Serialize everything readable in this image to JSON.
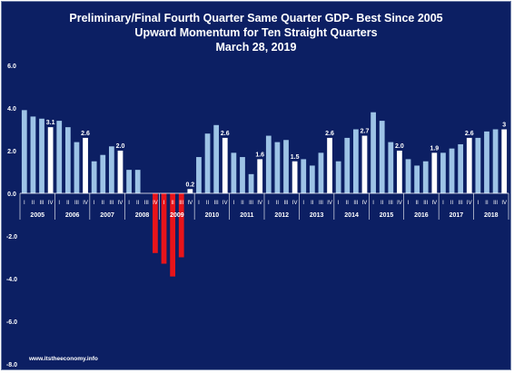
{
  "chart_data": {
    "type": "bar",
    "title": "Preliminary/Final Fourth Quarter Same Quarter GDP- Best Since 2005",
    "subtitle": "Upward Momentum for Ten Straight Quarters",
    "date": "March 28, 2019",
    "source": "www.itstheeconomy.info",
    "ylim": [
      -8,
      6
    ],
    "yticks": [
      "6.0",
      "4.0",
      "2.0",
      "0.0",
      "-2.0",
      "-4.0",
      "-6.0",
      "-8.0"
    ],
    "quarter_labels": [
      "I",
      "II",
      "III",
      "IV"
    ],
    "years": [
      "2005",
      "2006",
      "2007",
      "2008",
      "2009",
      "2010",
      "2011",
      "2012",
      "2013",
      "2014",
      "2015",
      "2016",
      "2017",
      "2018"
    ],
    "values": [
      3.9,
      3.6,
      3.5,
      3.1,
      3.4,
      3.1,
      2.4,
      2.6,
      1.5,
      1.8,
      2.2,
      2.0,
      1.1,
      1.1,
      0.0,
      -2.8,
      -3.3,
      -3.9,
      -3.0,
      0.2,
      1.7,
      2.8,
      3.2,
      2.6,
      1.9,
      1.7,
      0.9,
      1.6,
      2.7,
      2.4,
      2.5,
      1.5,
      1.6,
      1.3,
      1.9,
      2.6,
      1.5,
      2.6,
      3.0,
      2.7,
      3.8,
      3.4,
      2.4,
      2.0,
      1.6,
      1.3,
      1.5,
      1.9,
      1.9,
      2.1,
      2.3,
      2.6,
      2.6,
      2.9,
      3.0,
      3.0
    ],
    "data_labels": {
      "3": "3.1",
      "7": "2.6",
      "11": "2.0",
      "19": "0.2",
      "23": "2.6",
      "27": "1.6",
      "31": "1.5",
      "35": "2.6",
      "39": "2.7",
      "43": "2.0",
      "47": "1.9",
      "51": "2.6",
      "55": "3"
    },
    "colors": {
      "background": "#0c1f63",
      "bar_default": "#9dc3e6",
      "bar_q4": "#ffffff",
      "bar_negative": "#e8141a",
      "text": "#ffffff"
    }
  }
}
